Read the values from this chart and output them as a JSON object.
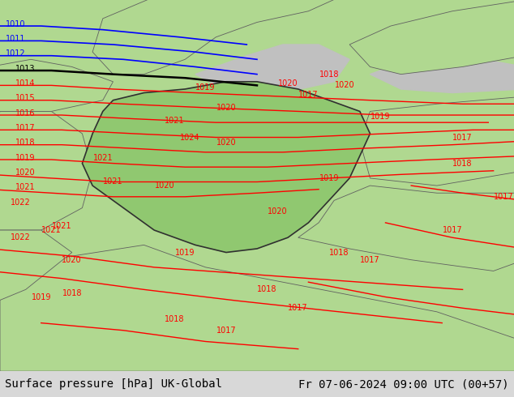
{
  "title_left": "Surface pressure [hPa] UK-Global",
  "title_right": "Fr 07-06-2024 09:00 UTC (00+57)",
  "title_fontsize": 10,
  "title_color": "#000000",
  "figsize": [
    6.34,
    4.9
  ],
  "dpi": 100,
  "bottom_bar_color": "#d8d8d8",
  "bottom_bar_height": 0.065,
  "land_color": "#b0d890",
  "germany_color": "#90c870",
  "sea_color": "#c0c0c0",
  "border_color": "#606060",
  "isobar_red": "#ff0000",
  "isobar_blue": "#0000ff",
  "isobar_black": "#000000",
  "label_fontsize": 7
}
